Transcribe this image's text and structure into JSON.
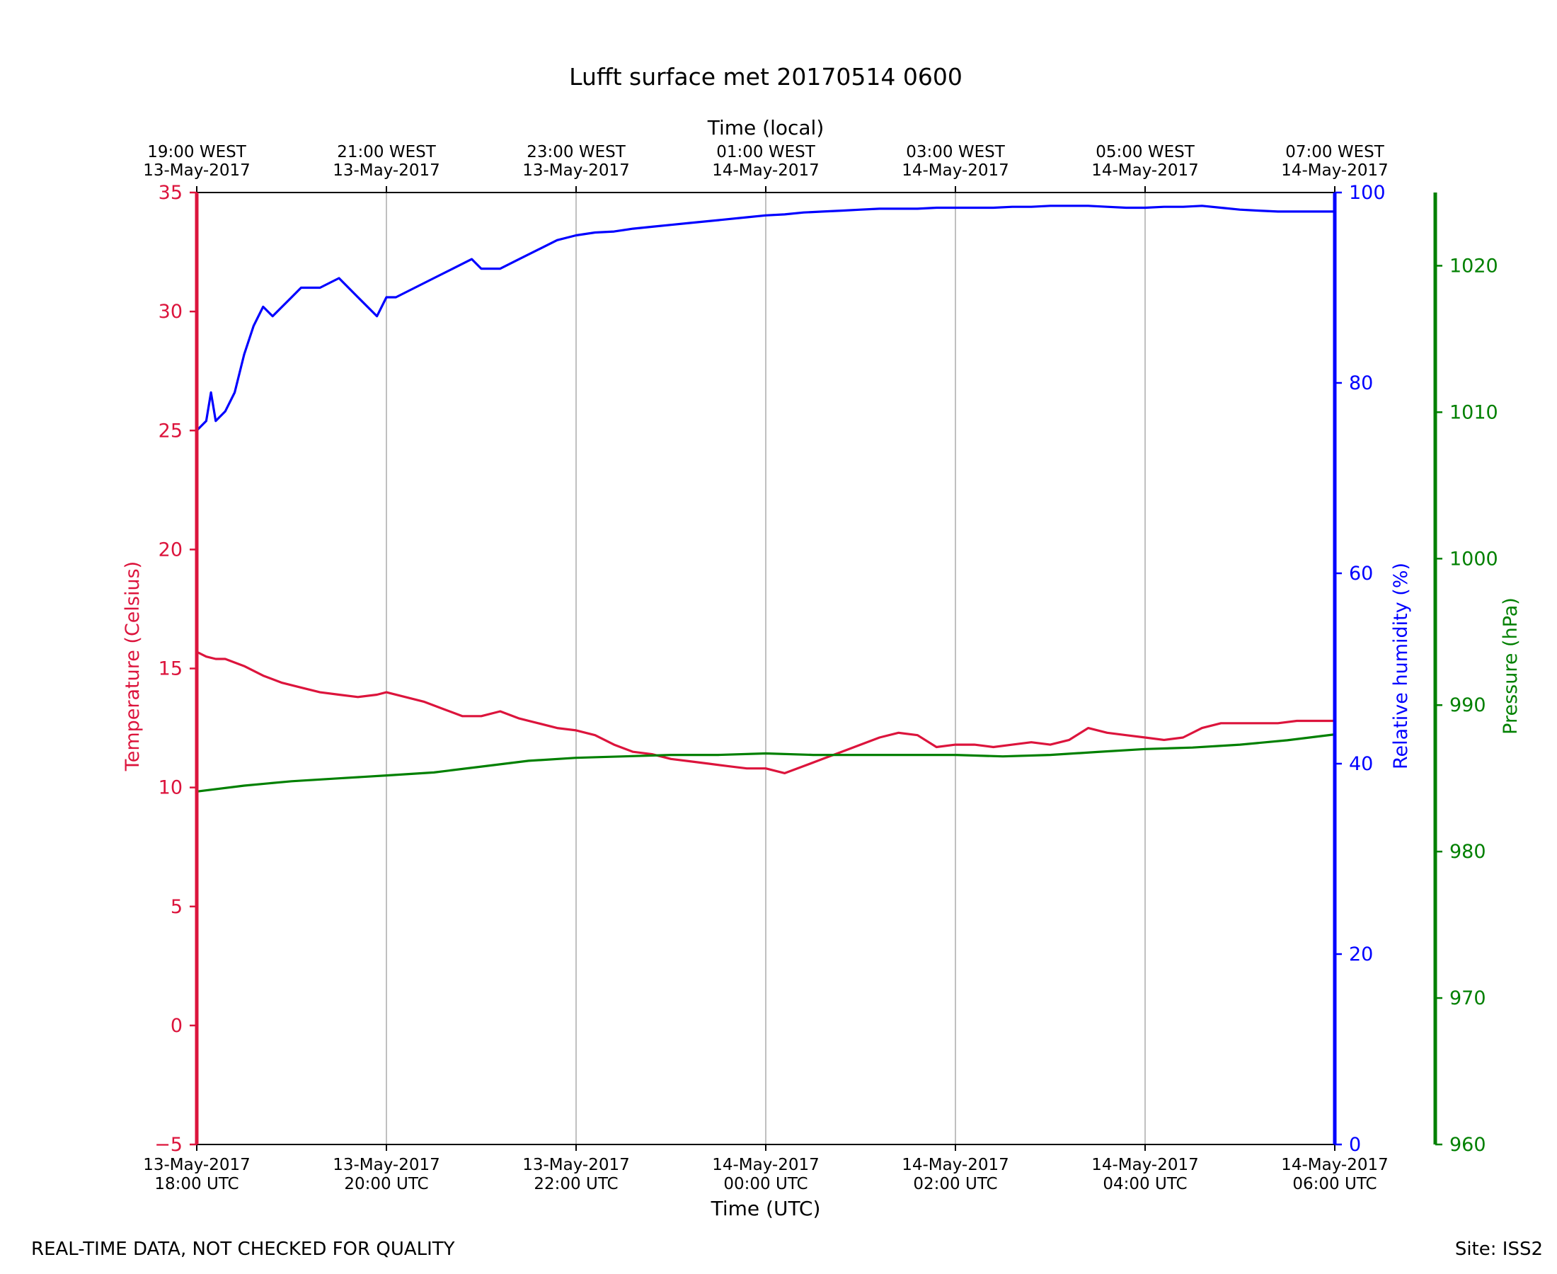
{
  "footer": {
    "disclaimer": "REAL-TIME DATA, NOT CHECKED FOR QUALITY",
    "site": "Site: ISS2"
  },
  "chart_data": {
    "type": "line",
    "title": "Lufft surface met 20170514 0600",
    "xlabel": "Time (UTC)",
    "x_top_label": "Time (local)",
    "x_range_hours": [
      0,
      12
    ],
    "x_ticks_bottom": [
      [
        "13-May-2017",
        "18:00 UTC"
      ],
      [
        "13-May-2017",
        "20:00 UTC"
      ],
      [
        "13-May-2017",
        "22:00 UTC"
      ],
      [
        "14-May-2017",
        "00:00 UTC"
      ],
      [
        "14-May-2017",
        "02:00 UTC"
      ],
      [
        "14-May-2017",
        "04:00 UTC"
      ],
      [
        "14-May-2017",
        "06:00 UTC"
      ]
    ],
    "x_ticks_top": [
      [
        "19:00 WEST",
        "13-May-2017"
      ],
      [
        "21:00 WEST",
        "13-May-2017"
      ],
      [
        "23:00 WEST",
        "13-May-2017"
      ],
      [
        "01:00 WEST",
        "14-May-2017"
      ],
      [
        "03:00 WEST",
        "14-May-2017"
      ],
      [
        "05:00 WEST",
        "14-May-2017"
      ],
      [
        "07:00 WEST",
        "14-May-2017"
      ]
    ],
    "grid": "vertical",
    "axes": {
      "temperature": {
        "label": "Temperature (Celsius)",
        "ylim": [
          -5,
          35
        ],
        "ticks": [
          "−5",
          "0",
          "5",
          "10",
          "15",
          "20",
          "25",
          "30",
          "35"
        ],
        "color": "#dc143c"
      },
      "humidity": {
        "label": "Relative humidity (%)",
        "ylim": [
          0,
          100
        ],
        "ticks": [
          "0",
          "20",
          "40",
          "60",
          "80",
          "100"
        ],
        "color": "#0000ff"
      },
      "pressure": {
        "label": "Pressure (hPa)",
        "ylim": [
          960,
          1025
        ],
        "ticks": [
          "960",
          "970",
          "980",
          "990",
          "1000",
          "1010",
          "1020"
        ],
        "color": "#008000"
      }
    },
    "series": [
      {
        "axis": "temperature",
        "color": "#dc143c",
        "x": [
          0,
          0.1,
          0.2,
          0.3,
          0.5,
          0.7,
          0.9,
          1.1,
          1.3,
          1.5,
          1.7,
          1.9,
          2.0,
          2.2,
          2.4,
          2.6,
          2.8,
          3.0,
          3.2,
          3.4,
          3.6,
          3.8,
          4.0,
          4.2,
          4.4,
          4.6,
          4.8,
          5.0,
          5.2,
          5.4,
          5.6,
          5.8,
          6.0,
          6.2,
          6.4,
          6.6,
          6.8,
          7.0,
          7.2,
          7.4,
          7.6,
          7.8,
          8.0,
          8.2,
          8.4,
          8.6,
          8.8,
          9.0,
          9.2,
          9.4,
          9.6,
          9.8,
          10.0,
          10.2,
          10.4,
          10.6,
          10.8,
          11.0,
          11.2,
          11.4,
          11.6,
          11.8,
          12.0
        ],
        "values": [
          15.7,
          15.5,
          15.4,
          15.4,
          15.1,
          14.7,
          14.4,
          14.2,
          14.0,
          13.9,
          13.8,
          13.9,
          14.0,
          13.8,
          13.6,
          13.3,
          13.0,
          13.0,
          13.2,
          12.9,
          12.7,
          12.5,
          12.4,
          12.2,
          11.8,
          11.5,
          11.4,
          11.2,
          11.1,
          11.0,
          10.9,
          10.8,
          10.8,
          10.6,
          10.9,
          11.2,
          11.5,
          11.8,
          12.1,
          12.3,
          12.2,
          11.7,
          11.8,
          11.8,
          11.7,
          11.8,
          11.9,
          11.8,
          12.0,
          12.5,
          12.3,
          12.2,
          12.1,
          12.0,
          12.1,
          12.5,
          12.7,
          12.7,
          12.7,
          12.7,
          12.8,
          12.8,
          12.8
        ]
      },
      {
        "axis": "humidity",
        "color": "#0000ff",
        "x": [
          0,
          0.1,
          0.15,
          0.2,
          0.3,
          0.4,
          0.5,
          0.6,
          0.7,
          0.8,
          1.0,
          1.1,
          1.3,
          1.5,
          1.7,
          1.9,
          2.0,
          2.1,
          2.3,
          2.5,
          2.7,
          2.9,
          3.0,
          3.2,
          3.4,
          3.6,
          3.8,
          4.0,
          4.2,
          4.4,
          4.6,
          4.8,
          5.0,
          5.2,
          5.4,
          5.6,
          5.8,
          6.0,
          6.2,
          6.4,
          6.6,
          6.8,
          7.0,
          7.2,
          7.4,
          7.6,
          7.8,
          8.0,
          8.2,
          8.4,
          8.6,
          8.8,
          9.0,
          9.2,
          9.4,
          9.6,
          9.8,
          10.0,
          10.2,
          10.4,
          10.6,
          10.8,
          11.0,
          11.2,
          11.4,
          11.6,
          11.8,
          12.0
        ],
        "values": [
          75,
          76,
          79,
          76,
          77,
          79,
          83,
          86,
          88,
          87,
          89,
          90,
          90,
          91,
          89,
          87,
          89,
          89,
          90,
          91,
          92,
          93,
          92,
          92,
          93,
          94,
          95,
          95.5,
          95.8,
          95.9,
          96.2,
          96.4,
          96.6,
          96.8,
          97.0,
          97.2,
          97.4,
          97.6,
          97.7,
          97.9,
          98.0,
          98.1,
          98.2,
          98.3,
          98.3,
          98.3,
          98.4,
          98.4,
          98.4,
          98.4,
          98.5,
          98.5,
          98.6,
          98.6,
          98.6,
          98.5,
          98.4,
          98.4,
          98.5,
          98.5,
          98.6,
          98.4,
          98.2,
          98.1,
          98.0,
          98.0,
          98.0,
          98.0
        ]
      },
      {
        "axis": "pressure",
        "color": "#008000",
        "x": [
          0,
          0.5,
          1.0,
          1.5,
          2.0,
          2.5,
          3.0,
          3.5,
          4.0,
          4.5,
          5.0,
          5.5,
          6.0,
          6.5,
          7.0,
          7.5,
          8.0,
          8.5,
          9.0,
          9.5,
          10.0,
          10.5,
          11.0,
          11.5,
          12.0
        ],
        "values": [
          984.1,
          984.5,
          984.8,
          985.0,
          985.2,
          985.4,
          985.8,
          986.2,
          986.4,
          986.5,
          986.6,
          986.6,
          986.7,
          986.6,
          986.6,
          986.6,
          986.6,
          986.5,
          986.6,
          986.8,
          987.0,
          987.1,
          987.3,
          987.6,
          988.0
        ]
      }
    ]
  }
}
